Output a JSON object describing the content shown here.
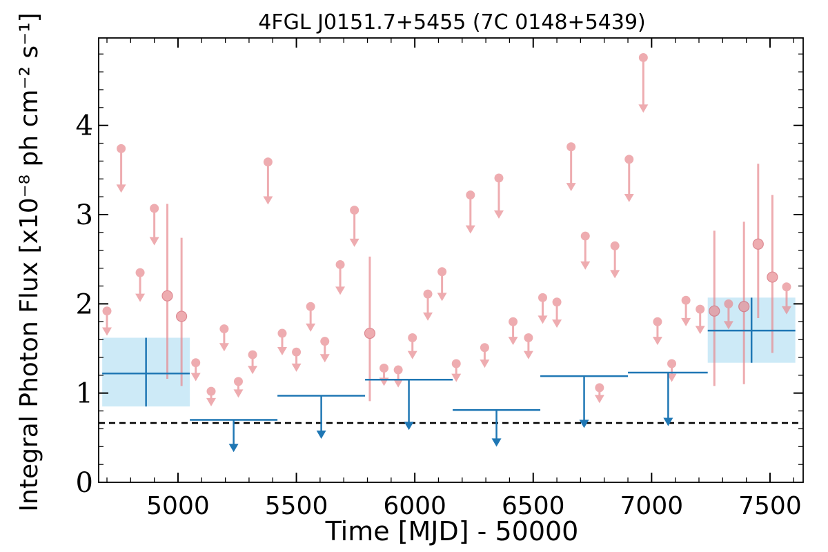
{
  "chart_data": {
    "type": "scatter",
    "title": "4FGL J0151.7+5455 (7C 0148+5439)",
    "xlabel": "Time [MJD] - 50000",
    "ylabel": "Integral Photon Flux [x10⁻⁸ ph cm⁻² s⁻¹]",
    "xlim": [
      4665,
      7640
    ],
    "ylim": [
      0,
      4.98
    ],
    "xticks": [
      "5000",
      "5500",
      "6000",
      "6500",
      "7000",
      "7500"
    ],
    "xtick_values": [
      5000,
      5500,
      6000,
      6500,
      7000,
      7500
    ],
    "yticks": [
      "0",
      "1",
      "2",
      "3",
      "4"
    ],
    "ytick_values": [
      0,
      1,
      2,
      3,
      4
    ],
    "reference_line": {
      "y": 0.665,
      "style": "dashed",
      "color": "#000000"
    },
    "colors": {
      "fine": "#e78a90",
      "coarse": "#1f77b4",
      "band": "#cdeaf7"
    },
    "fine_bins": {
      "upper_limits": [
        {
          "x": 4700,
          "y": 1.92
        },
        {
          "x": 4760,
          "y": 3.74
        },
        {
          "x": 4840,
          "y": 2.35
        },
        {
          "x": 4900,
          "y": 3.07
        },
        {
          "x": 5075,
          "y": 1.34
        },
        {
          "x": 5140,
          "y": 1.02
        },
        {
          "x": 5195,
          "y": 1.72
        },
        {
          "x": 5255,
          "y": 1.13
        },
        {
          "x": 5315,
          "y": 1.43
        },
        {
          "x": 5380,
          "y": 3.59
        },
        {
          "x": 5440,
          "y": 1.67
        },
        {
          "x": 5500,
          "y": 1.46
        },
        {
          "x": 5560,
          "y": 1.97
        },
        {
          "x": 5620,
          "y": 1.58
        },
        {
          "x": 5685,
          "y": 2.44
        },
        {
          "x": 5745,
          "y": 3.05
        },
        {
          "x": 5870,
          "y": 1.28
        },
        {
          "x": 5930,
          "y": 1.26
        },
        {
          "x": 5990,
          "y": 1.62
        },
        {
          "x": 6055,
          "y": 2.11
        },
        {
          "x": 6115,
          "y": 2.36
        },
        {
          "x": 6175,
          "y": 1.33
        },
        {
          "x": 6235,
          "y": 3.22
        },
        {
          "x": 6295,
          "y": 1.51
        },
        {
          "x": 6355,
          "y": 3.41
        },
        {
          "x": 6415,
          "y": 1.8
        },
        {
          "x": 6480,
          "y": 1.62
        },
        {
          "x": 6540,
          "y": 2.07
        },
        {
          "x": 6600,
          "y": 2.02
        },
        {
          "x": 6660,
          "y": 3.76
        },
        {
          "x": 6720,
          "y": 2.76
        },
        {
          "x": 6780,
          "y": 1.06
        },
        {
          "x": 6845,
          "y": 2.65
        },
        {
          "x": 6905,
          "y": 3.62
        },
        {
          "x": 6965,
          "y": 4.76
        },
        {
          "x": 7025,
          "y": 1.8
        },
        {
          "x": 7085,
          "y": 1.33
        },
        {
          "x": 7145,
          "y": 2.04
        },
        {
          "x": 7205,
          "y": 1.94
        },
        {
          "x": 7325,
          "y": 2.0
        },
        {
          "x": 7570,
          "y": 2.19
        }
      ],
      "detections": [
        {
          "x": 4955,
          "y": 2.09,
          "ylow": 1.16,
          "yhigh": 3.12
        },
        {
          "x": 5015,
          "y": 1.86,
          "ylow": 1.08,
          "yhigh": 2.74
        },
        {
          "x": 5810,
          "y": 1.67,
          "ylow": 0.91,
          "yhigh": 2.53
        },
        {
          "x": 7265,
          "y": 1.92,
          "ylow": 1.08,
          "yhigh": 2.82
        },
        {
          "x": 7390,
          "y": 1.97,
          "ylow": 1.1,
          "yhigh": 2.92
        },
        {
          "x": 7450,
          "y": 2.67,
          "ylow": 1.84,
          "yhigh": 3.57
        },
        {
          "x": 7510,
          "y": 2.3,
          "ylow": 1.45,
          "yhigh": 3.22
        }
      ]
    },
    "coarse_bins": {
      "detections": [
        {
          "x": 4865,
          "xlow": 4680,
          "xhigh": 5050,
          "y": 1.22,
          "ylow": 0.85,
          "yhigh": 1.62
        },
        {
          "x": 7422,
          "xlow": 7237,
          "xhigh": 7607,
          "y": 1.7,
          "ylow": 1.34,
          "yhigh": 2.07
        }
      ],
      "upper_limits": [
        {
          "x": 5235,
          "xlow": 5050,
          "xhigh": 5420,
          "y": 0.7
        },
        {
          "x": 5605,
          "xlow": 5420,
          "xhigh": 5790,
          "y": 0.97
        },
        {
          "x": 5975,
          "xlow": 5790,
          "xhigh": 6160,
          "y": 1.15
        },
        {
          "x": 6345,
          "xlow": 6160,
          "xhigh": 6530,
          "y": 0.81
        },
        {
          "x": 6715,
          "xlow": 6530,
          "xhigh": 6900,
          "y": 1.19
        },
        {
          "x": 7070,
          "xlow": 6900,
          "xhigh": 7237,
          "y": 1.23
        }
      ]
    }
  }
}
